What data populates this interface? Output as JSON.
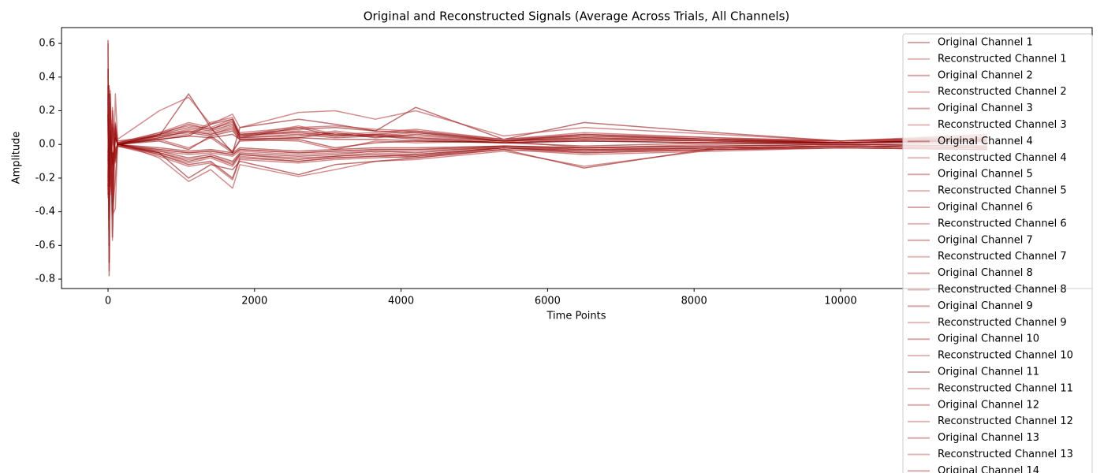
{
  "chart_data": {
    "type": "line",
    "title": "Original and Reconstructed Signals (Average Across Trials, All Channels)",
    "x_label": "Time Points",
    "y_label": "Amplitude",
    "xlim": [
      -635,
      13434
    ],
    "ylim": [
      -0.856,
      0.694
    ],
    "xticks": [
      0,
      2000,
      4000,
      6000,
      8000,
      10000
    ],
    "yticks": [
      -0.8,
      -0.6,
      -0.4,
      -0.2,
      {
        "value": 0,
        "label": "0.0"
      },
      0.2,
      0.4,
      0.6
    ],
    "legend": "upper right",
    "line_opacity": 0.55,
    "legend_opacity": 0.35,
    "x": [
      0,
      15,
      30,
      60,
      100,
      130,
      700,
      1100,
      1400,
      1700,
      1800,
      2600,
      3100,
      3650,
      4200,
      5400,
      6500,
      8300,
      10000,
      12000
    ],
    "series": [
      {
        "name": "Original Channel 1",
        "color": "#8b0000",
        "values": [
          0.1,
          -0.3,
          0.2,
          -0.1,
          0.05,
          0,
          0.02,
          -0.03,
          0.05,
          -0.04,
          0.02,
          0.03,
          -0.02,
          0.01,
          0.02,
          0.01,
          -0.01,
          0.01,
          0,
          0.01
        ]
      },
      {
        "name": "Reconstructed Channel 1",
        "color": "#b03030",
        "values": [
          0.12,
          -0.28,
          0.18,
          -0.12,
          0.06,
          0.01,
          0.03,
          -0.02,
          0.04,
          -0.05,
          0.03,
          0.02,
          -0.03,
          0.02,
          0.01,
          0.02,
          -0.02,
          0,
          0.01,
          0.02
        ]
      },
      {
        "name": "Original Channel 2",
        "color": "#8b0000",
        "values": [
          0.62,
          -0.78,
          0.3,
          -0.55,
          0.1,
          0.02,
          0.05,
          0.3,
          0.1,
          -0.05,
          0.1,
          0.15,
          0.12,
          0.08,
          0.22,
          0.03,
          0.13,
          0.07,
          0.02,
          0.05
        ]
      },
      {
        "name": "Reconstructed Channel 2",
        "color": "#b03030",
        "values": [
          0.6,
          -0.75,
          0.32,
          -0.57,
          0.3,
          0.03,
          0.2,
          0.28,
          0.12,
          0.18,
          0.1,
          0.19,
          0.2,
          0.15,
          0.2,
          0.05,
          0.1,
          0.06,
          0.02,
          0.06
        ]
      },
      {
        "name": "Original Channel 3",
        "color": "#8b0000",
        "values": [
          0.45,
          -0.7,
          0.25,
          -0.4,
          -0.2,
          0,
          -0.05,
          -0.2,
          -0.12,
          -0.15,
          -0.1,
          -0.18,
          -0.12,
          -0.1,
          -0.08,
          -0.03,
          -0.14,
          -0.02,
          -0.01,
          -0.02
        ]
      },
      {
        "name": "Reconstructed Channel 3",
        "color": "#b03030",
        "values": [
          0.42,
          -0.68,
          0.28,
          -0.42,
          -0.38,
          0.01,
          -0.08,
          -0.22,
          -0.15,
          -0.26,
          -0.12,
          -0.19,
          -0.15,
          -0.1,
          -0.09,
          -0.04,
          -0.13,
          -0.03,
          -0.02,
          -0.03
        ]
      },
      {
        "name": "Original Channel 4",
        "color": "#8b0000",
        "values": [
          0.2,
          -0.5,
          0.1,
          -0.2,
          0.08,
          0,
          0.06,
          0.1,
          0.08,
          0.12,
          0.05,
          0.08,
          0.06,
          0.05,
          0.04,
          0.01,
          0.03,
          0.02,
          0.01,
          0.03
        ]
      },
      {
        "name": "Reconstructed Channel 4",
        "color": "#b03030",
        "values": [
          0.22,
          -0.48,
          0.12,
          -0.22,
          0.09,
          0.01,
          0.07,
          0.11,
          0.09,
          0.13,
          0.06,
          0.07,
          0.05,
          0.06,
          0.05,
          0.02,
          0.04,
          0.03,
          0.02,
          0.04
        ]
      },
      {
        "name": "Original Channel 5",
        "color": "#8b0000",
        "values": [
          -0.2,
          0.35,
          -0.1,
          0.1,
          -0.05,
          0,
          -0.04,
          -0.08,
          -0.06,
          -0.1,
          -0.05,
          -0.07,
          -0.06,
          -0.04,
          -0.05,
          -0.01,
          -0.03,
          -0.02,
          -0.01,
          -0.02
        ]
      },
      {
        "name": "Reconstructed Channel 5",
        "color": "#b03030",
        "values": [
          -0.22,
          0.33,
          -0.12,
          0.12,
          -0.06,
          -0.01,
          -0.05,
          -0.09,
          -0.07,
          -0.11,
          -0.06,
          -0.08,
          -0.07,
          -0.05,
          -0.06,
          -0.02,
          -0.04,
          -0.03,
          -0.02,
          -0.03
        ]
      },
      {
        "name": "Original Channel 6",
        "color": "#8b0000",
        "values": [
          0.3,
          -0.4,
          0.15,
          -0.3,
          0.1,
          0,
          0.03,
          0.05,
          0.12,
          0.15,
          0.04,
          0.1,
          0.05,
          0.06,
          0.08,
          0.02,
          0.05,
          0.03,
          0.01,
          0.02
        ]
      },
      {
        "name": "Reconstructed Channel 6",
        "color": "#b03030",
        "values": [
          0.28,
          -0.42,
          0.17,
          -0.28,
          0.11,
          0.01,
          0.04,
          0.06,
          0.13,
          0.16,
          0.05,
          0.11,
          0.06,
          0.07,
          0.09,
          0.03,
          0.06,
          0.04,
          0.02,
          0.03
        ]
      },
      {
        "name": "Original Channel 7",
        "color": "#8b0000",
        "values": [
          -0.3,
          0.2,
          -0.2,
          0.05,
          -0.1,
          0,
          -0.06,
          -0.12,
          -0.1,
          -0.2,
          -0.08,
          -0.1,
          -0.08,
          -0.07,
          -0.06,
          -0.02,
          -0.05,
          -0.03,
          -0.01,
          -0.02
        ]
      },
      {
        "name": "Reconstructed Channel 7",
        "color": "#b03030",
        "values": [
          -0.32,
          0.22,
          -0.22,
          0.06,
          -0.11,
          -0.01,
          -0.07,
          -0.13,
          -0.11,
          -0.21,
          -0.09,
          -0.11,
          -0.09,
          -0.08,
          -0.07,
          -0.03,
          -0.06,
          -0.04,
          -0.02,
          -0.03
        ]
      },
      {
        "name": "Original Channel 8",
        "color": "#8b0000",
        "values": [
          0.25,
          -0.6,
          0.2,
          -0.15,
          0.07,
          0,
          0.04,
          0.08,
          0.06,
          0.1,
          0.04,
          0.06,
          0.04,
          0.05,
          0.03,
          0.01,
          0.02,
          0.01,
          0.01,
          0.02
        ]
      },
      {
        "name": "Reconstructed Channel 8",
        "color": "#b03030",
        "values": [
          0.27,
          -0.58,
          0.22,
          -0.16,
          0.08,
          0.01,
          0.05,
          0.09,
          0.07,
          0.11,
          0.05,
          0.07,
          0.05,
          0.06,
          0.04,
          0.02,
          0.03,
          0.02,
          0.02,
          0.03
        ]
      },
      {
        "name": "Original Channel 9",
        "color": "#8b0000",
        "values": [
          -0.1,
          0.3,
          -0.3,
          0.2,
          -0.06,
          0,
          -0.03,
          -0.05,
          -0.04,
          -0.06,
          -0.03,
          -0.05,
          -0.04,
          -0.03,
          -0.03,
          -0.01,
          -0.02,
          -0.01,
          0,
          -0.01
        ]
      },
      {
        "name": "Reconstructed Channel 9",
        "color": "#b03030",
        "values": [
          -0.12,
          0.28,
          -0.28,
          0.22,
          -0.07,
          -0.01,
          -0.04,
          -0.06,
          -0.05,
          -0.07,
          -0.04,
          -0.06,
          -0.05,
          -0.04,
          -0.04,
          -0.02,
          -0.03,
          -0.02,
          -0.01,
          -0.02
        ]
      },
      {
        "name": "Original Channel 10",
        "color": "#8b0000",
        "values": [
          0.15,
          -0.2,
          0.1,
          -0.25,
          0.04,
          0,
          0.05,
          0.07,
          0.05,
          0.08,
          0.03,
          0.04,
          0.07,
          0.04,
          0.06,
          0.02,
          0.04,
          0.02,
          0.01,
          0.03
        ]
      },
      {
        "name": "Reconstructed Channel 10",
        "color": "#b03030",
        "values": [
          0.17,
          -0.22,
          0.12,
          -0.27,
          0.05,
          0.01,
          0.06,
          0.08,
          0.06,
          0.09,
          0.04,
          0.05,
          0.08,
          0.05,
          0.07,
          0.03,
          0.05,
          0.03,
          0.02,
          0.04
        ]
      },
      {
        "name": "Original Channel 11",
        "color": "#8b0000",
        "values": [
          -0.25,
          0.1,
          -0.15,
          -0.05,
          -0.08,
          0,
          -0.05,
          -0.1,
          -0.07,
          -0.12,
          -0.06,
          -0.09,
          -0.07,
          -0.06,
          -0.07,
          -0.02,
          -0.04,
          -0.02,
          -0.01,
          -0.02
        ]
      },
      {
        "name": "Reconstructed Channel 11",
        "color": "#b03030",
        "values": [
          -0.27,
          0.12,
          -0.17,
          -0.06,
          -0.09,
          -0.01,
          -0.06,
          -0.11,
          -0.08,
          -0.13,
          -0.07,
          -0.1,
          -0.08,
          -0.07,
          -0.08,
          -0.03,
          -0.05,
          -0.03,
          -0.02,
          -0.03
        ]
      },
      {
        "name": "Original Channel 12",
        "color": "#8b0000",
        "values": [
          0.35,
          -0.45,
          0.05,
          -0.35,
          0.12,
          0,
          0.06,
          0.12,
          0.09,
          0.14,
          0.06,
          0.09,
          0.1,
          0.08,
          0.07,
          0.02,
          0.06,
          0.03,
          0.01,
          0.03
        ]
      },
      {
        "name": "Reconstructed Channel 12",
        "color": "#b03030",
        "values": [
          0.33,
          -0.47,
          0.07,
          -0.37,
          0.13,
          0.01,
          0.07,
          0.13,
          0.1,
          0.15,
          0.07,
          0.1,
          0.11,
          0.09,
          0.08,
          0.03,
          0.07,
          0.04,
          0.02,
          0.04
        ]
      },
      {
        "name": "Original Channel 13",
        "color": "#8b0000",
        "values": [
          -0.05,
          0.15,
          -0.25,
          0.1,
          -0.03,
          0,
          -0.02,
          -0.04,
          -0.03,
          -0.05,
          -0.02,
          -0.04,
          -0.03,
          -0.02,
          -0.02,
          -0.01,
          -0.02,
          -0.01,
          0,
          -0.01
        ]
      },
      {
        "name": "Reconstructed Channel 13",
        "color": "#b03030",
        "values": [
          -0.07,
          0.17,
          -0.27,
          0.12,
          -0.04,
          -0.01,
          -0.03,
          -0.05,
          -0.04,
          -0.06,
          -0.03,
          -0.05,
          -0.04,
          -0.03,
          -0.03,
          -0.02,
          -0.03,
          -0.02,
          -0.01,
          -0.02
        ]
      },
      {
        "name": "Original Channel 14",
        "color": "#8b0000",
        "values": [
          0.18,
          -0.25,
          0.08,
          -0.12,
          0.04,
          0,
          0.03,
          0.05,
          0.04,
          0.06,
          0.03,
          0.04,
          0.03,
          0.03,
          0.02,
          0.01,
          0.02,
          0.01,
          0.01,
          0.02
        ]
      }
    ]
  }
}
